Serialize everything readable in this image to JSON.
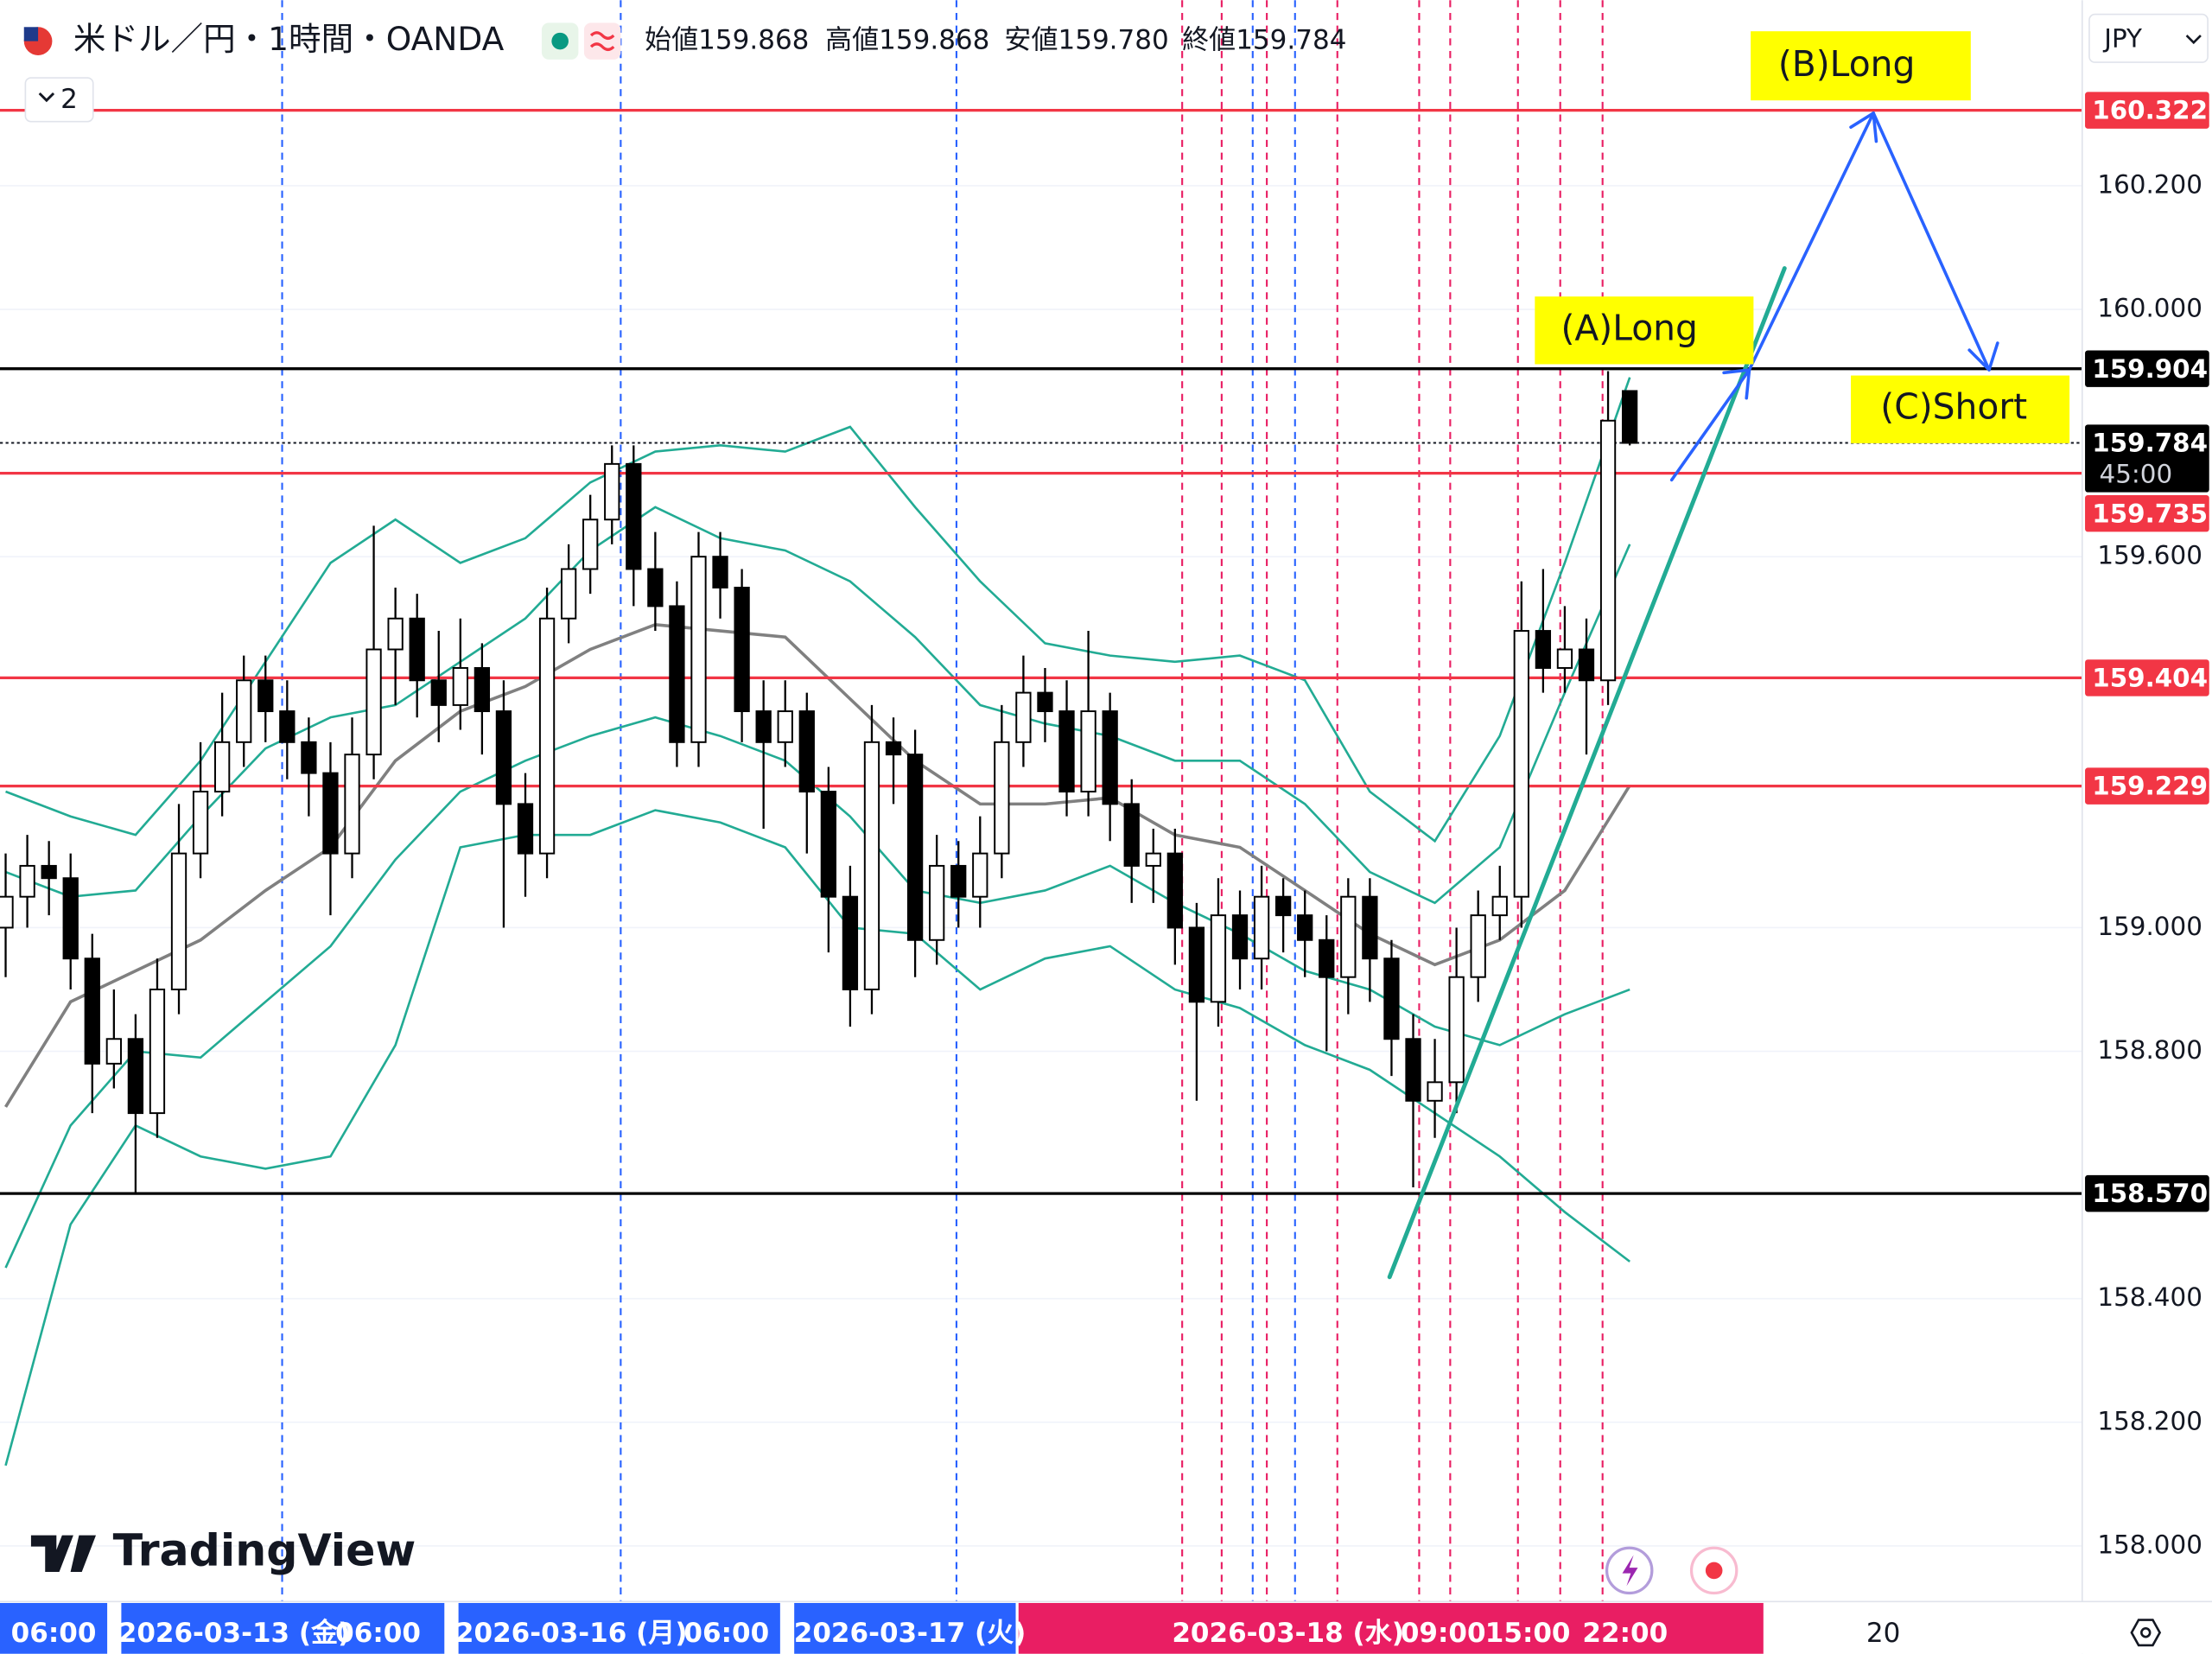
{
  "chart_data": {
    "type": "candlestick",
    "title": "米ドル／円・1時間・OANDA",
    "ohlc_header": [
      {
        "label": "始値",
        "value": "159.868"
      },
      {
        "label": "高値",
        "value": "159.868"
      },
      {
        "label": "安値",
        "value": "159.780"
      },
      {
        "label": "終値",
        "value": "159.784"
      }
    ],
    "indicator_count": 2,
    "currency": "JPY",
    "open": [
      159.0,
      159.05,
      159.1,
      159.08,
      158.95,
      158.78,
      158.82,
      158.7,
      158.9,
      159.12,
      159.22,
      159.3,
      159.4,
      159.35,
      159.3,
      159.25,
      159.12,
      159.28,
      159.45,
      159.5,
      159.4,
      159.36,
      159.42,
      159.35,
      159.2,
      159.12,
      159.5,
      159.58,
      159.66,
      159.75,
      159.58,
      159.52,
      159.3,
      159.6,
      159.55,
      159.35,
      159.3,
      159.35,
      159.22,
      159.05,
      158.9,
      159.3,
      159.28,
      158.98,
      159.1,
      159.05,
      159.12,
      159.3,
      159.38,
      159.35,
      159.22,
      159.35,
      159.2,
      159.1,
      159.12,
      159.0,
      158.88,
      159.02,
      158.95,
      159.05,
      159.02,
      158.98,
      158.92,
      159.05,
      158.95,
      158.82,
      158.72,
      158.75,
      158.92,
      159.02,
      159.05,
      159.48,
      159.42,
      159.45,
      159.4,
      159.868
    ],
    "high": [
      159.12,
      159.15,
      159.14,
      159.12,
      158.99,
      158.9,
      158.86,
      158.95,
      159.2,
      159.3,
      159.38,
      159.44,
      159.44,
      159.4,
      159.34,
      159.3,
      159.34,
      159.65,
      159.55,
      159.54,
      159.48,
      159.5,
      159.46,
      159.4,
      159.25,
      159.55,
      159.62,
      159.7,
      159.78,
      159.78,
      159.64,
      159.56,
      159.64,
      159.64,
      159.58,
      159.4,
      159.4,
      159.38,
      159.26,
      159.1,
      159.36,
      159.34,
      159.32,
      159.15,
      159.14,
      159.18,
      159.36,
      159.44,
      159.42,
      159.4,
      159.48,
      159.38,
      159.24,
      159.16,
      159.16,
      159.04,
      159.08,
      159.06,
      159.1,
      159.08,
      159.06,
      159.02,
      159.08,
      159.08,
      158.98,
      158.86,
      158.82,
      159.0,
      159.06,
      159.1,
      159.56,
      159.58,
      159.52,
      159.5,
      159.9,
      159.868
    ],
    "low": [
      158.92,
      159.0,
      159.02,
      158.9,
      158.7,
      158.74,
      158.57,
      158.66,
      158.86,
      159.08,
      159.18,
      159.26,
      159.3,
      159.24,
      159.18,
      159.02,
      159.08,
      159.24,
      159.36,
      159.34,
      159.3,
      159.32,
      159.28,
      159.0,
      159.05,
      159.08,
      159.46,
      159.54,
      159.62,
      159.52,
      159.48,
      159.26,
      159.26,
      159.5,
      159.3,
      159.16,
      159.26,
      159.12,
      158.96,
      158.84,
      158.86,
      159.2,
      158.92,
      158.94,
      159.0,
      159.0,
      159.08,
      159.26,
      159.3,
      159.18,
      159.18,
      159.14,
      159.04,
      159.04,
      158.94,
      158.72,
      158.84,
      158.9,
      158.9,
      158.96,
      158.92,
      158.8,
      158.86,
      158.88,
      158.76,
      158.58,
      158.66,
      158.7,
      158.88,
      158.98,
      159.0,
      159.38,
      159.38,
      159.28,
      159.36,
      159.78
    ],
    "close": [
      159.05,
      159.1,
      159.08,
      158.95,
      158.78,
      158.82,
      158.7,
      158.9,
      159.12,
      159.22,
      159.3,
      159.4,
      159.35,
      159.3,
      159.25,
      159.12,
      159.28,
      159.45,
      159.5,
      159.4,
      159.36,
      159.42,
      159.35,
      159.2,
      159.12,
      159.5,
      159.58,
      159.66,
      159.75,
      159.58,
      159.52,
      159.3,
      159.6,
      159.55,
      159.35,
      159.3,
      159.35,
      159.22,
      159.05,
      158.9,
      159.3,
      159.28,
      158.98,
      159.1,
      159.05,
      159.12,
      159.3,
      159.38,
      159.35,
      159.22,
      159.35,
      159.2,
      159.1,
      159.12,
      159.0,
      158.88,
      159.02,
      158.95,
      159.05,
      159.02,
      158.98,
      158.92,
      159.05,
      158.95,
      158.82,
      158.72,
      158.75,
      158.92,
      159.02,
      159.05,
      159.48,
      159.42,
      159.45,
      159.4,
      159.82,
      159.784
    ],
    "up_color": "#ffffff",
    "down_color": "#000000",
    "bands": {
      "x": [
        0,
        3,
        6,
        9,
        12,
        15,
        18,
        21,
        24,
        27,
        30,
        33,
        36,
        39,
        42,
        45,
        48,
        51,
        54,
        57,
        60,
        63,
        66,
        69,
        72,
        75
      ],
      "series": [
        {
          "color": "#22ab94",
          "values": [
            159.22,
            159.18,
            159.15,
            159.27,
            159.43,
            159.59,
            159.66,
            159.59,
            159.63,
            159.72,
            159.77,
            159.78,
            159.77,
            159.81,
            159.68,
            159.56,
            159.46,
            159.44,
            159.43,
            159.44,
            159.4,
            159.22,
            159.14,
            159.31,
            159.59,
            159.89
          ]
        },
        {
          "color": "#22ab94",
          "values": [
            159.09,
            159.05,
            159.06,
            159.18,
            159.29,
            159.34,
            159.36,
            159.43,
            159.5,
            159.61,
            159.68,
            159.63,
            159.61,
            159.56,
            159.47,
            159.36,
            159.33,
            159.31,
            159.27,
            159.27,
            159.2,
            159.09,
            159.04,
            159.13,
            159.38,
            159.62
          ]
        },
        {
          "color": "#808080",
          "values": [
            158.71,
            158.88,
            158.93,
            158.98,
            159.06,
            159.13,
            159.27,
            159.35,
            159.39,
            159.45,
            159.49,
            159.48,
            159.47,
            159.37,
            159.27,
            159.2,
            159.2,
            159.21,
            159.15,
            159.13,
            159.06,
            158.99,
            158.94,
            158.98,
            159.06,
            159.23
          ]
        },
        {
          "color": "#22ab94",
          "values": [
            158.45,
            158.68,
            158.8,
            158.79,
            158.88,
            158.97,
            159.11,
            159.22,
            159.27,
            159.31,
            159.34,
            159.31,
            159.27,
            159.18,
            159.06,
            159.04,
            159.06,
            159.1,
            159.04,
            158.99,
            158.93,
            158.9,
            158.84,
            158.81,
            158.86,
            158.9
          ]
        },
        {
          "color": "#22ab94",
          "values": [
            158.13,
            158.52,
            158.68,
            158.63,
            158.61,
            158.63,
            158.81,
            159.13,
            159.15,
            159.15,
            159.19,
            159.17,
            159.13,
            159.0,
            158.99,
            158.9,
            158.95,
            158.97,
            158.9,
            158.87,
            158.81,
            158.77,
            158.7,
            158.63,
            158.54,
            158.46
          ]
        }
      ]
    },
    "ylim": [
      157.91,
      160.5
    ],
    "yticks": [
      {
        "value": 160.2,
        "label": "160.200"
      },
      {
        "value": 160.0,
        "label": "160.000"
      },
      {
        "value": 159.6,
        "label": "159.600"
      },
      {
        "value": 159.0,
        "label": "159.000"
      },
      {
        "value": 158.8,
        "label": "158.800"
      },
      {
        "value": 158.4,
        "label": "158.400"
      },
      {
        "value": 158.2,
        "label": "158.200"
      },
      {
        "value": 158.0,
        "label": "158.000"
      }
    ],
    "levels": [
      {
        "value": 160.322,
        "label": "160.322",
        "color": "#f23645"
      },
      {
        "value": 159.904,
        "label": "159.904",
        "color": "#000000"
      },
      {
        "value": 159.735,
        "label": "159.735",
        "color": "#f23645"
      },
      {
        "value": 159.404,
        "label": "159.404",
        "color": "#f23645"
      },
      {
        "value": 159.229,
        "label": "159.229",
        "color": "#f23645"
      },
      {
        "value": 158.57,
        "label": "158.570",
        "color": "#000000"
      }
    ],
    "current_price": {
      "value": 159.784,
      "label": "159.784",
      "countdown": "45:00"
    },
    "time_labels": [
      "06:00",
      "2026-03-13 (金)",
      "06:00",
      "2026-03-16 (月)",
      "06:00",
      "2026-03-17 (火)",
      "2026-03-18 (水)",
      "09:00",
      "15:00",
      "22:00",
      "20"
    ],
    "annotations": [
      "(A)Long",
      "(B)Long",
      "(C)Short"
    ],
    "watermark": "TradingView"
  }
}
